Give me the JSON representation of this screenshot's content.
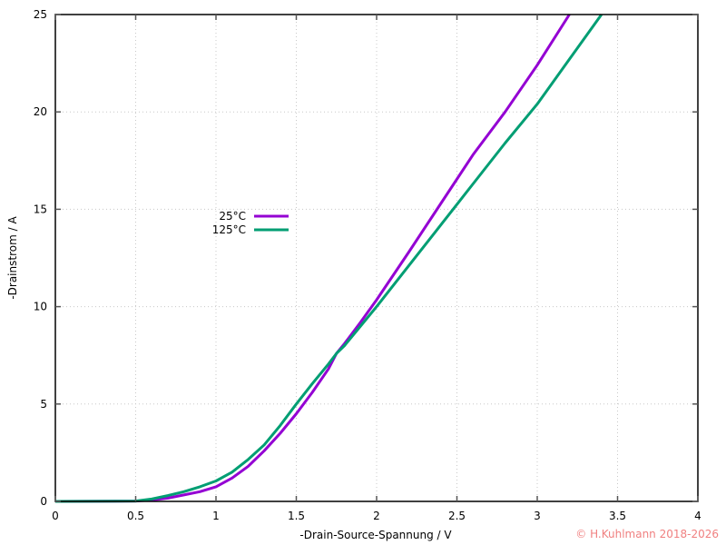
{
  "chart_data": {
    "type": "line",
    "title": "",
    "xlabel": "-Drain-Source-Spannung / V",
    "ylabel": "-Drainstrom / A",
    "xlim": [
      0,
      4
    ],
    "ylim": [
      0,
      25
    ],
    "x_ticks": [
      "0",
      "0.5",
      "1",
      "1.5",
      "2",
      "2.5",
      "3",
      "3.5",
      "4"
    ],
    "y_ticks": [
      "0",
      "5",
      "10",
      "15",
      "20",
      "25"
    ],
    "grid": true,
    "legend_position": "upper-left-inside (approx x=1.0V, y=15A)",
    "series": [
      {
        "name": "25°C",
        "color": "#9400d3",
        "x": [
          0,
          0.5,
          0.6,
          0.7,
          0.8,
          0.9,
          1.0,
          1.1,
          1.2,
          1.3,
          1.4,
          1.5,
          1.6,
          1.7,
          1.75,
          1.8,
          1.9,
          2.0,
          2.2,
          2.4,
          2.6,
          2.8,
          3.0,
          3.2
        ],
        "y": [
          0,
          0.02,
          0.07,
          0.17,
          0.33,
          0.5,
          0.75,
          1.2,
          1.8,
          2.6,
          3.5,
          4.5,
          5.6,
          6.8,
          7.6,
          8.1,
          9.2,
          10.35,
          12.8,
          15.3,
          17.8,
          20.0,
          22.4,
          25.0
        ]
      },
      {
        "name": "125°C",
        "color": "#009e73",
        "x": [
          0,
          0.5,
          0.6,
          0.7,
          0.8,
          0.9,
          1.0,
          1.1,
          1.2,
          1.3,
          1.4,
          1.5,
          1.6,
          1.7,
          1.75,
          1.8,
          1.9,
          2.0,
          2.2,
          2.4,
          2.6,
          2.8,
          3.0,
          3.2,
          3.4
        ],
        "y": [
          0,
          0.02,
          0.12,
          0.3,
          0.5,
          0.75,
          1.05,
          1.5,
          2.15,
          2.9,
          3.9,
          5.0,
          6.05,
          7.05,
          7.6,
          8.0,
          9.0,
          10.0,
          12.1,
          14.2,
          16.3,
          18.4,
          20.4,
          22.7,
          25.0
        ]
      }
    ]
  },
  "legend": {
    "items": [
      {
        "label": "25°C",
        "color": "#9400d3"
      },
      {
        "label": "125°C",
        "color": "#009e73"
      }
    ]
  },
  "copyright": "© H.Kuhlmann 2018-2026"
}
